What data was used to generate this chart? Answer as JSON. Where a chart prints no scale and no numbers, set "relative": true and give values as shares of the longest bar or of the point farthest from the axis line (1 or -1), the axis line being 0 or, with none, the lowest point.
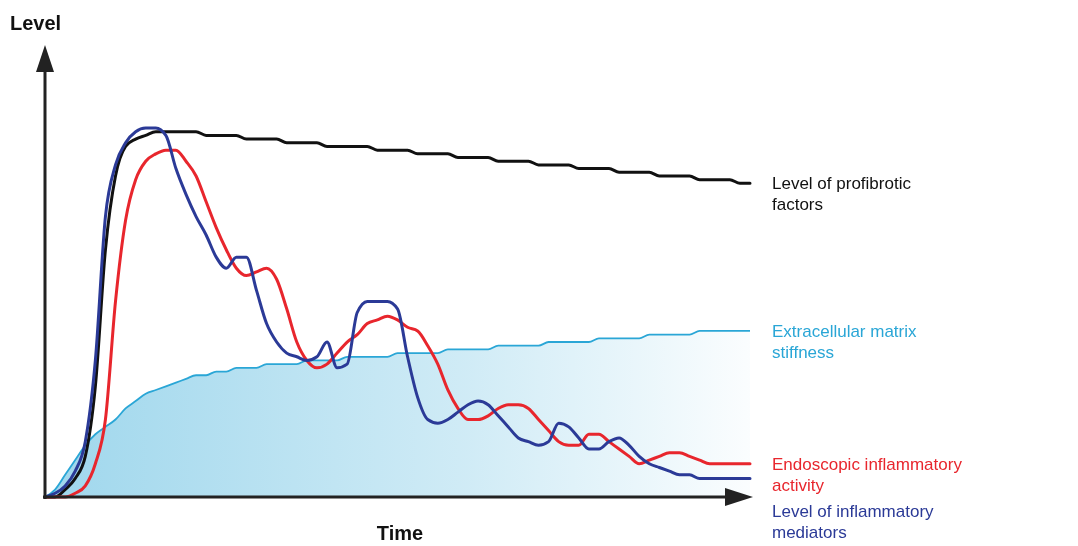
{
  "chart_data": {
    "type": "line",
    "relative": true,
    "xlabel": "Time",
    "ylabel": "Level",
    "legend": false,
    "categories": [
      null,
      null,
      null,
      null,
      null,
      null,
      null,
      null,
      null,
      null,
      null,
      null,
      null,
      null,
      null,
      null,
      null,
      null,
      null,
      null,
      null,
      null,
      null,
      null,
      null,
      null,
      null,
      null,
      null,
      null,
      null,
      null,
      null,
      null,
      null,
      null,
      null,
      null,
      null,
      null,
      null,
      null,
      null,
      null,
      null,
      null,
      null,
      null,
      null,
      null,
      null,
      null,
      null,
      null,
      null,
      null,
      null,
      null,
      null,
      null,
      null,
      null,
      null,
      null,
      null,
      null,
      null,
      null,
      null,
      null,
      null
    ],
    "series": [
      {
        "name": "Extracellular matrix stiffness",
        "type": "area",
        "color": "#2aa6d6",
        "values": [
          0,
          0.02,
          0.06,
          0.1,
          0.14,
          0.17,
          0.19,
          0.21,
          0.24,
          0.26,
          0.28,
          0.29,
          0.3,
          0.31,
          0.32,
          0.33,
          0.33,
          0.34,
          0.34,
          0.35,
          0.35,
          0.35,
          0.36,
          0.36,
          0.36,
          0.36,
          0.37,
          0.37,
          0.37,
          0.37,
          0.38,
          0.38,
          0.38,
          0.38,
          0.38,
          0.39,
          0.39,
          0.39,
          0.39,
          0.39,
          0.4,
          0.4,
          0.4,
          0.4,
          0.4,
          0.41,
          0.41,
          0.41,
          0.41,
          0.41,
          0.42,
          0.42,
          0.42,
          0.42,
          0.42,
          0.43,
          0.43,
          0.43,
          0.43,
          0.43,
          0.44,
          0.44,
          0.44,
          0.44,
          0.44,
          0.45,
          0.45,
          0.45,
          0.45,
          0.45,
          0.45
        ]
      },
      {
        "name": "Level of profibrotic factors",
        "color": "#111111",
        "values": [
          0,
          0,
          0.02,
          0.05,
          0.11,
          0.3,
          0.67,
          0.87,
          0.95,
          0.97,
          0.98,
          0.99,
          0.99,
          0.99,
          0.99,
          0.99,
          0.98,
          0.98,
          0.98,
          0.98,
          0.97,
          0.97,
          0.97,
          0.97,
          0.96,
          0.96,
          0.96,
          0.96,
          0.95,
          0.95,
          0.95,
          0.95,
          0.95,
          0.94,
          0.94,
          0.94,
          0.94,
          0.93,
          0.93,
          0.93,
          0.93,
          0.92,
          0.92,
          0.92,
          0.92,
          0.91,
          0.91,
          0.91,
          0.91,
          0.9,
          0.9,
          0.9,
          0.9,
          0.89,
          0.89,
          0.89,
          0.89,
          0.88,
          0.88,
          0.88,
          0.88,
          0.87,
          0.87,
          0.87,
          0.87,
          0.86,
          0.86,
          0.86,
          0.86,
          0.85,
          0.85
        ]
      },
      {
        "name": "Endoscopic inflammatory activity",
        "color": "#e8262d",
        "values": [
          0,
          0,
          0,
          0.01,
          0.03,
          0.09,
          0.21,
          0.53,
          0.75,
          0.86,
          0.91,
          0.93,
          0.94,
          0.94,
          0.91,
          0.87,
          0.8,
          0.73,
          0.67,
          0.62,
          0.6,
          0.61,
          0.62,
          0.59,
          0.51,
          0.42,
          0.37,
          0.35,
          0.36,
          0.39,
          0.42,
          0.44,
          0.47,
          0.48,
          0.49,
          0.48,
          0.46,
          0.45,
          0.41,
          0.36,
          0.29,
          0.24,
          0.21,
          0.21,
          0.22,
          0.24,
          0.25,
          0.25,
          0.24,
          0.21,
          0.18,
          0.15,
          0.14,
          0.14,
          0.17,
          0.17,
          0.15,
          0.13,
          0.11,
          0.09,
          0.1,
          0.11,
          0.12,
          0.12,
          0.11,
          0.1,
          0.09,
          0.09,
          0.09,
          0.09,
          0.09
        ]
      },
      {
        "name": "Level of inflammatory mediators",
        "color": "#2b3a97",
        "values": [
          0,
          0.01,
          0.03,
          0.07,
          0.15,
          0.37,
          0.76,
          0.9,
          0.96,
          0.99,
          1.0,
          1.0,
          0.98,
          0.89,
          0.82,
          0.76,
          0.71,
          0.65,
          0.62,
          0.65,
          0.65,
          0.56,
          0.47,
          0.42,
          0.39,
          0.38,
          0.37,
          0.38,
          0.42,
          0.35,
          0.36,
          0.5,
          0.53,
          0.53,
          0.53,
          0.51,
          0.38,
          0.27,
          0.21,
          0.2,
          0.21,
          0.23,
          0.25,
          0.26,
          0.25,
          0.22,
          0.19,
          0.16,
          0.15,
          0.14,
          0.15,
          0.2,
          0.19,
          0.16,
          0.13,
          0.13,
          0.15,
          0.16,
          0.14,
          0.11,
          0.09,
          0.08,
          0.07,
          0.06,
          0.06,
          0.05,
          0.05,
          0.05,
          0.05,
          0.05,
          0.05
        ]
      }
    ]
  }
}
